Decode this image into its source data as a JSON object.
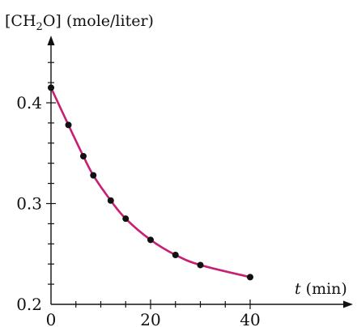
{
  "chart_data": {
    "type": "scatter",
    "ylabel_prefix": "[CH",
    "ylabel_sub": "2",
    "ylabel_suffix": "O] (mole/liter)",
    "xlabel_italic": "t",
    "xlabel_unit": " (min)",
    "xlim": [
      0,
      45
    ],
    "ylim": [
      0.2,
      0.44
    ],
    "x_ticks": [
      0,
      20,
      40
    ],
    "x_tick_labels": [
      "0",
      "20",
      "40"
    ],
    "x_minor_step": 5,
    "y_ticks": [
      0.2,
      0.3,
      0.4
    ],
    "y_tick_labels": [
      "0.2",
      "0.3",
      "0.4"
    ],
    "y_minor_step": 0.02,
    "grid": false,
    "points": [
      {
        "x": 0,
        "y": 0.415
      },
      {
        "x": 3.5,
        "y": 0.378
      },
      {
        "x": 6.5,
        "y": 0.347
      },
      {
        "x": 8.5,
        "y": 0.328
      },
      {
        "x": 12,
        "y": 0.303
      },
      {
        "x": 15,
        "y": 0.285
      },
      {
        "x": 20,
        "y": 0.264
      },
      {
        "x": 25,
        "y": 0.249
      },
      {
        "x": 30,
        "y": 0.239
      },
      {
        "x": 40,
        "y": 0.227
      }
    ],
    "colors": {
      "curve": "#c81e73",
      "points": "#111111",
      "axes": "#111111"
    }
  }
}
